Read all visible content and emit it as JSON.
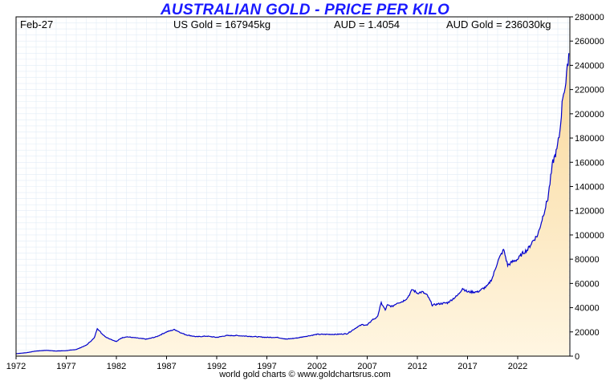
{
  "header": {
    "date": "Feb-27",
    "us_gold": "US Gold = 167945kg",
    "aud_rate": "AUD = 1.4054",
    "aud_gold": "AUD Gold = 236030kg"
  },
  "footer": "world gold charts © www.goldchartsrus.com",
  "colors": {
    "title": "#1a1aff",
    "line": "#0000cc",
    "fill_top": "#f9d89a",
    "fill_bottom": "#fff6e2",
    "grid": "#e2ecf6"
  },
  "chart_data": {
    "type": "area",
    "title": "AUSTRALIAN GOLD - PRICE PER KILO",
    "xlim": [
      1972,
      2027.2
    ],
    "ylim": [
      0,
      280000
    ],
    "x_ticks": [
      "1972",
      "1977",
      "1982",
      "1987",
      "1992",
      "1997",
      "2002",
      "2007",
      "2012",
      "2017",
      "2022"
    ],
    "y_ticks": [
      "0",
      "20000",
      "40000",
      "60000",
      "80000",
      "100000",
      "120000",
      "140000",
      "160000",
      "180000",
      "200000",
      "220000",
      "240000",
      "260000",
      "280000"
    ],
    "grid": true,
    "series": [
      {
        "x": [
          1972,
          1973,
          1974,
          1975,
          1976,
          1977,
          1978,
          1979,
          1979.8,
          1980.1,
          1980.5,
          1981,
          1982,
          1982.5,
          1983,
          1984,
          1985,
          1986,
          1987,
          1987.8,
          1988.5,
          1989,
          1990,
          1991,
          1992,
          1993,
          1994,
          1995,
          1996,
          1997,
          1998,
          1999,
          2000,
          2001,
          2002,
          2003,
          2004,
          2005,
          2006,
          2006.5,
          2007,
          2007.5,
          2008,
          2008.4,
          2008.8,
          2009,
          2009.5,
          2010,
          2010.5,
          2011,
          2011.5,
          2012,
          2012.5,
          2013,
          2013.5,
          2014,
          2015,
          2016,
          2016.5,
          2017,
          2018,
          2019,
          2019.5,
          2020,
          2020.6,
          2021,
          2021.5,
          2022,
          2022.5,
          2023,
          2023.5,
          2024,
          2024.5,
          2025,
          2025.5,
          2025.9,
          2026.2,
          2026.5,
          2026.8,
          2027.1
        ],
        "y": [
          2000,
          2800,
          4200,
          4800,
          4200,
          4500,
          5500,
          9000,
          15000,
          23000,
          19000,
          15500,
          12000,
          15000,
          16000,
          15000,
          14000,
          16000,
          20000,
          22000,
          19000,
          17500,
          16000,
          16500,
          15500,
          17000,
          17000,
          16500,
          16000,
          15500,
          15500,
          14000,
          15000,
          16500,
          18000,
          18000,
          18000,
          18500,
          24000,
          26000,
          25500,
          30000,
          32000,
          44000,
          38000,
          42000,
          41000,
          44000,
          45000,
          48000,
          55000,
          52000,
          53000,
          50000,
          42000,
          43000,
          44000,
          50000,
          56000,
          53000,
          53000,
          58000,
          65000,
          78000,
          88000,
          75000,
          78000,
          80000,
          85000,
          88000,
          95000,
          100000,
          115000,
          130000,
          160000,
          170000,
          185000,
          215000,
          225000,
          250000
        ]
      }
    ]
  }
}
